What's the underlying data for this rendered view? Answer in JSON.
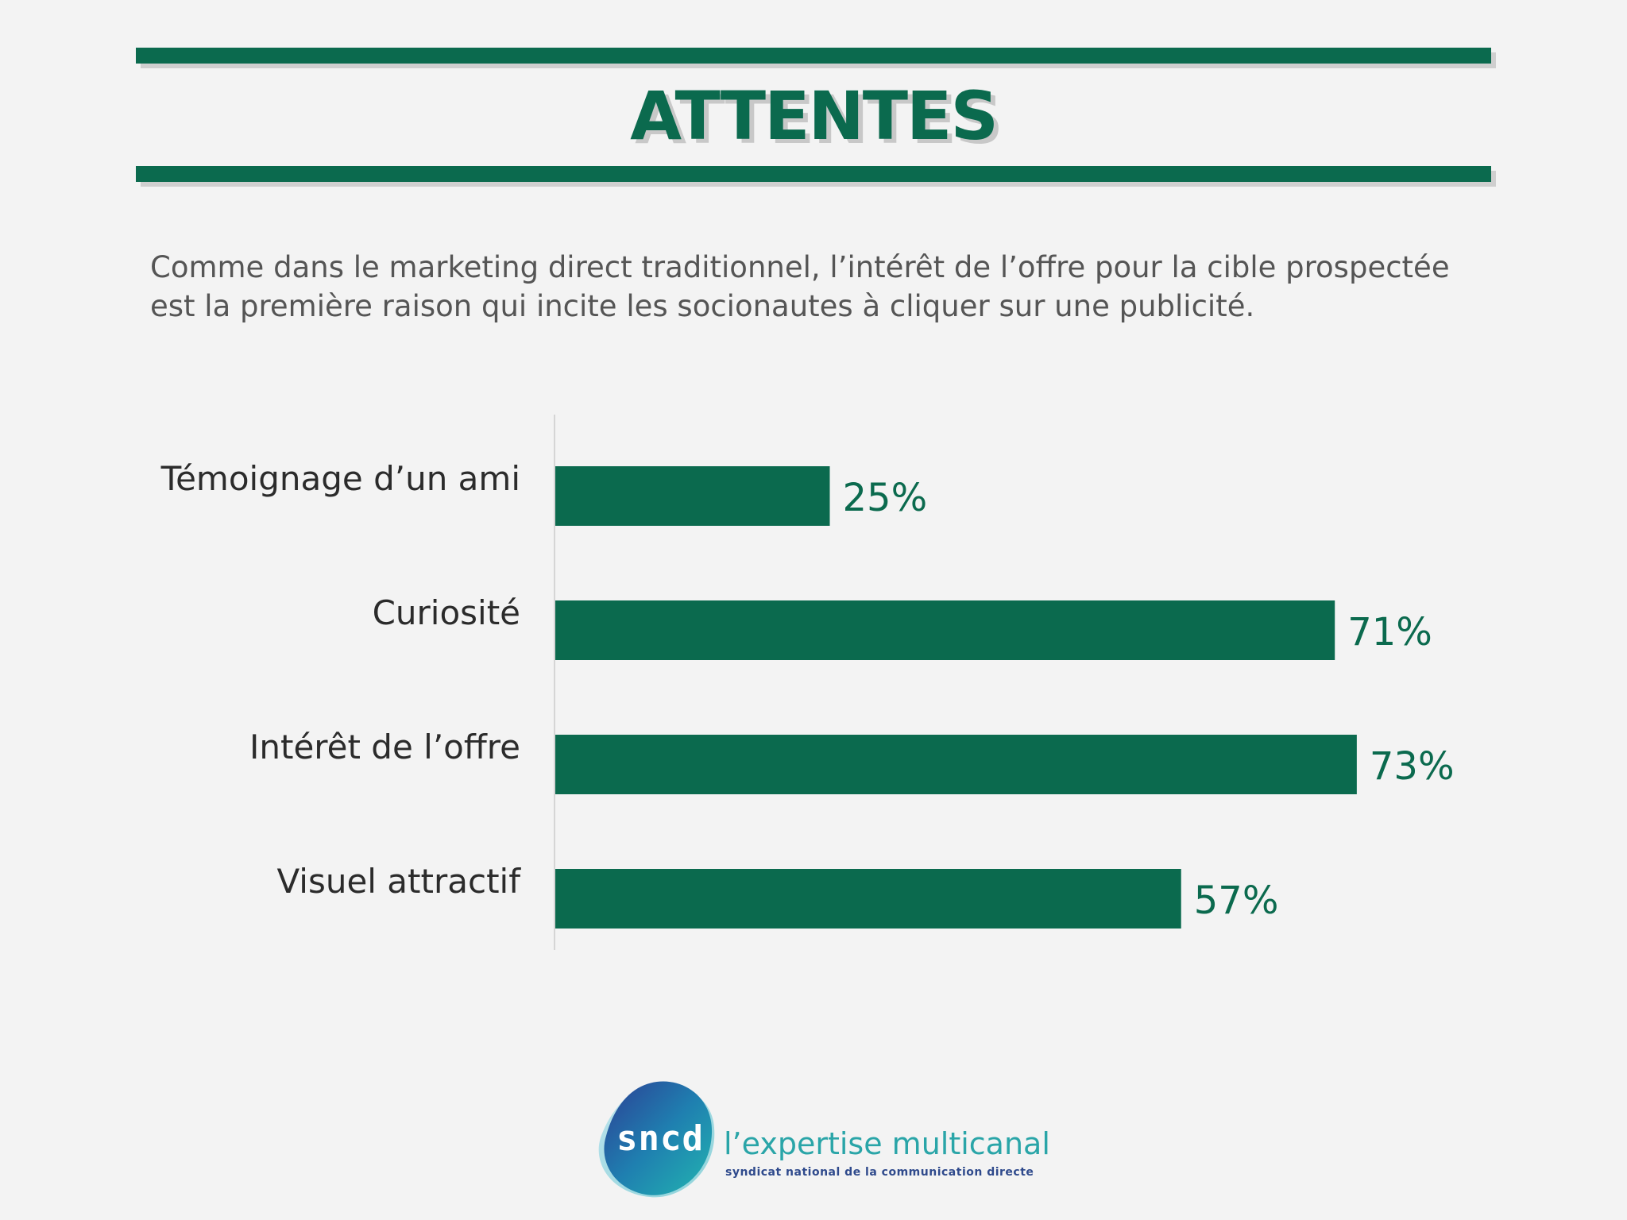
{
  "header": {
    "title": "ATTENTES"
  },
  "intro": {
    "line1": "Comme dans le marketing direct traditionnel, l’intérêt de l’offre pour la cible prospectée",
    "line2": "est la première raison qui incite les socionautes à cliquer sur une publicité."
  },
  "colors": {
    "accent": "#0b6a4e",
    "background": "#f3f3f3",
    "text": "#2b2b2b",
    "intro_text": "#555555",
    "axis_line": "#d5d5d5"
  },
  "chart_data": {
    "type": "bar",
    "orientation": "horizontal",
    "categories": [
      "Témoignage d’un ami",
      "Curiosité",
      "Intérêt de l’offre",
      "Visuel attractif"
    ],
    "values": [
      25,
      71,
      73,
      57
    ],
    "value_labels": [
      "25%",
      "71%",
      "73%",
      "57%"
    ],
    "unit": "%",
    "xlim": [
      0,
      100
    ],
    "grid": false,
    "legend": "none"
  },
  "footer": {
    "logo_text": "sncd",
    "tagline": "l’expertise multicanal",
    "subtitle": "syndicat national de la communication directe",
    "logo_icon": "sncd-logo-icon"
  }
}
